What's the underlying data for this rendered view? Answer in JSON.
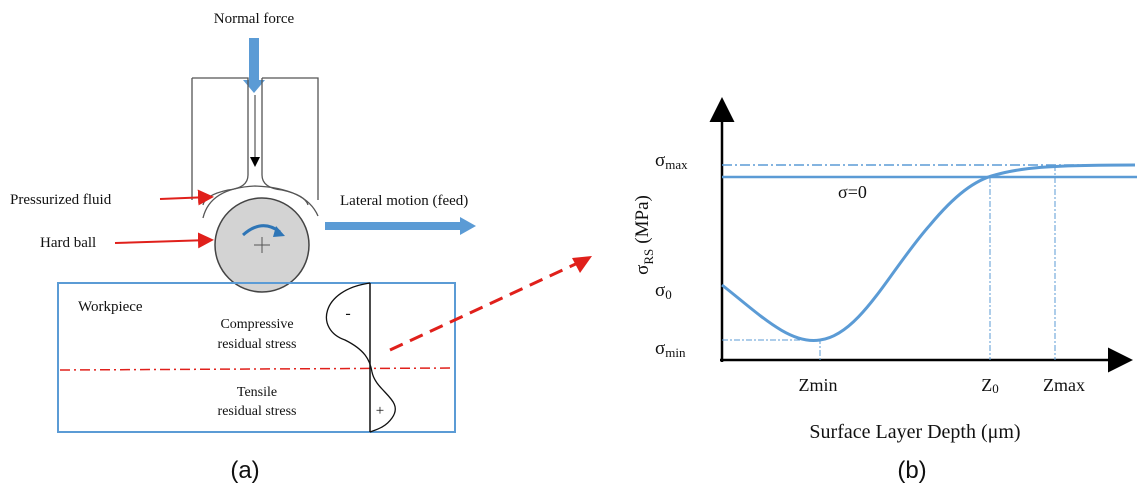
{
  "panel_a": {
    "top_label": "Normal force",
    "fluid_label": "Pressurized fluid",
    "ball_label": "Hard ball",
    "motion_label": "Lateral motion (feed)",
    "workpiece_label": "Workpiece",
    "compressive_lines": [
      "Compressive",
      "residual stress"
    ],
    "tensile_lines": [
      "Tensile",
      "residual stress"
    ],
    "minus_sign": "-",
    "plus_sign": "+",
    "caption": "(a)"
  },
  "panel_b": {
    "y_axis_title": {
      "symbol": "σ",
      "subscript": "RS",
      "unit": "(MPa)"
    },
    "sigma_max": {
      "symbol": "σ",
      "subscript": "max"
    },
    "sigma_zero_line": "σ=0",
    "sigma_0": {
      "symbol": "σ",
      "subscript": "0"
    },
    "sigma_min": {
      "symbol": "σ",
      "subscript": "min"
    },
    "z_min": "Zmin",
    "z_0": {
      "symbol": "Z",
      "subscript": "0"
    },
    "z_max": "Zmax",
    "x_axis_title": "Surface Layer Depth (μm)",
    "caption": "(b)"
  }
}
